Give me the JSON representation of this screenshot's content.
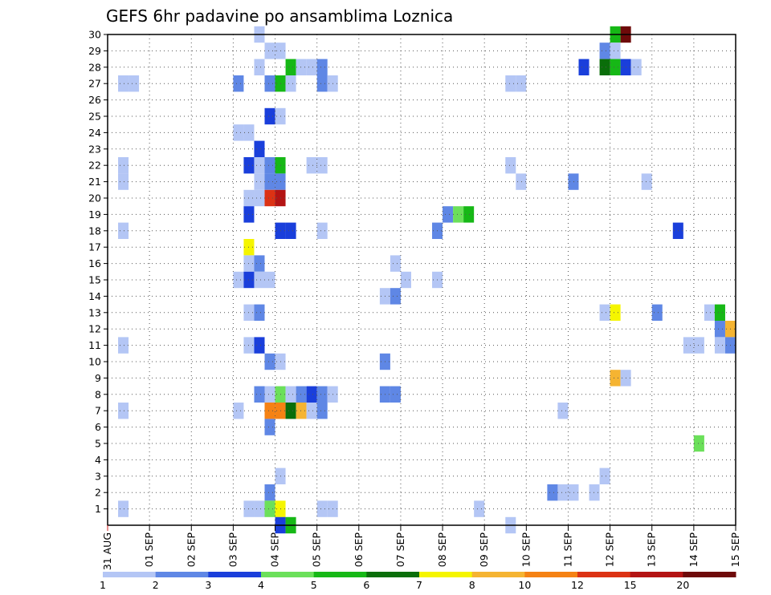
{
  "chart_data": {
    "type": "heatmap",
    "title": "GEFS 6hr padavine po ansamblima Loznica",
    "xlabel": "",
    "ylabel": "",
    "x_tick_labels": [
      "31 AUG",
      "01 SEP",
      "02 SEP",
      "03 SEP",
      "04 SEP",
      "05 SEP",
      "06 SEP",
      "07 SEP",
      "08 SEP",
      "09 SEP",
      "10 SEP",
      "11 SEP",
      "12 SEP",
      "13 SEP",
      "14 SEP",
      "15 SEP"
    ],
    "x_range_days": [
      0,
      15
    ],
    "y_tick_labels": [
      "1",
      "2",
      "3",
      "4",
      "5",
      "6",
      "7",
      "8",
      "9",
      "10",
      "11",
      "12",
      "13",
      "14",
      "15",
      "16",
      "17",
      "18",
      "19",
      "20",
      "21",
      "22",
      "23",
      "24",
      "25",
      "26",
      "27",
      "28",
      "29",
      "30"
    ],
    "y_range": [
      0,
      30
    ],
    "grid": true,
    "legend_position": "bottom",
    "legend": {
      "labels": [
        "1",
        "2",
        "3",
        "4",
        "5",
        "6",
        "7",
        "8",
        "10",
        "12",
        "15",
        "20"
      ],
      "colors": [
        "#b4c6f5",
        "#5f87e5",
        "#1a3fdb",
        "#6be05a",
        "#16b816",
        "#0a6e0a",
        "#f5f500",
        "#f5b432",
        "#f58214",
        "#dc3214",
        "#b41414",
        "#6e0a0a"
      ]
    },
    "cells": [
      {
        "d": 0.25,
        "m": 27,
        "c": 1
      },
      {
        "d": 0.25,
        "m": 22,
        "c": 1
      },
      {
        "d": 0.25,
        "m": 21,
        "c": 1
      },
      {
        "d": 0.25,
        "m": 18,
        "c": 1
      },
      {
        "d": 0.25,
        "m": 11,
        "c": 1
      },
      {
        "d": 0.25,
        "m": 7,
        "c": 1
      },
      {
        "d": 0.25,
        "m": 1,
        "c": 1
      },
      {
        "d": 0.5,
        "m": 27,
        "c": 1
      },
      {
        "d": 3.0,
        "m": 27,
        "c": 2
      },
      {
        "d": 3.0,
        "m": 24,
        "c": 1
      },
      {
        "d": 3.0,
        "m": 15,
        "c": 1
      },
      {
        "d": 3.0,
        "m": 7,
        "c": 1
      },
      {
        "d": 3.25,
        "m": 24,
        "c": 1
      },
      {
        "d": 3.25,
        "m": 22,
        "c": 3
      },
      {
        "d": 3.25,
        "m": 20,
        "c": 1
      },
      {
        "d": 3.25,
        "m": 19,
        "c": 3
      },
      {
        "d": 3.25,
        "m": 17,
        "c": 7
      },
      {
        "d": 3.25,
        "m": 16,
        "c": 1
      },
      {
        "d": 3.25,
        "m": 15,
        "c": 3
      },
      {
        "d": 3.25,
        "m": 13,
        "c": 1
      },
      {
        "d": 3.25,
        "m": 11,
        "c": 1
      },
      {
        "d": 3.25,
        "m": 1,
        "c": 1
      },
      {
        "d": 3.5,
        "m": 30,
        "c": 1
      },
      {
        "d": 3.5,
        "m": 28,
        "c": 1
      },
      {
        "d": 3.5,
        "m": 23,
        "c": 3
      },
      {
        "d": 3.5,
        "m": 22,
        "c": 1
      },
      {
        "d": 3.5,
        "m": 21,
        "c": 1
      },
      {
        "d": 3.5,
        "m": 20,
        "c": 1
      },
      {
        "d": 3.5,
        "m": 16,
        "c": 2
      },
      {
        "d": 3.5,
        "m": 15,
        "c": 1
      },
      {
        "d": 3.5,
        "m": 13,
        "c": 2
      },
      {
        "d": 3.5,
        "m": 11,
        "c": 3
      },
      {
        "d": 3.5,
        "m": 8,
        "c": 2
      },
      {
        "d": 3.5,
        "m": 1,
        "c": 1
      },
      {
        "d": 3.75,
        "m": 29,
        "c": 1
      },
      {
        "d": 3.75,
        "m": 27,
        "c": 2
      },
      {
        "d": 3.75,
        "m": 25,
        "c": 3
      },
      {
        "d": 3.75,
        "m": 22,
        "c": 2
      },
      {
        "d": 3.75,
        "m": 21,
        "c": 2
      },
      {
        "d": 3.75,
        "m": 20,
        "c": 10
      },
      {
        "d": 3.75,
        "m": 15,
        "c": 1
      },
      {
        "d": 3.75,
        "m": 10,
        "c": 2
      },
      {
        "d": 3.75,
        "m": 8,
        "c": 1
      },
      {
        "d": 3.75,
        "m": 7,
        "c": 9
      },
      {
        "d": 3.75,
        "m": 6,
        "c": 2
      },
      {
        "d": 3.75,
        "m": 2,
        "c": 2
      },
      {
        "d": 3.75,
        "m": 1,
        "c": 4
      },
      {
        "d": 4.0,
        "m": 29,
        "c": 1
      },
      {
        "d": 4.0,
        "m": 27,
        "c": 5
      },
      {
        "d": 4.0,
        "m": 25,
        "c": 1
      },
      {
        "d": 4.0,
        "m": 22,
        "c": 5
      },
      {
        "d": 4.0,
        "m": 21,
        "c": 2
      },
      {
        "d": 4.0,
        "m": 20,
        "c": 11
      },
      {
        "d": 4.0,
        "m": 18,
        "c": 3
      },
      {
        "d": 4.0,
        "m": 10,
        "c": 1
      },
      {
        "d": 4.0,
        "m": 8,
        "c": 4
      },
      {
        "d": 4.0,
        "m": 7,
        "c": 9
      },
      {
        "d": 4.0,
        "m": 3,
        "c": 1
      },
      {
        "d": 4.0,
        "m": 1,
        "c": 7
      },
      {
        "d": 4.0,
        "m": 0,
        "c": 3
      },
      {
        "d": 4.25,
        "m": 28,
        "c": 5
      },
      {
        "d": 4.25,
        "m": 27,
        "c": 1
      },
      {
        "d": 4.25,
        "m": 18,
        "c": 3
      },
      {
        "d": 4.25,
        "m": 8,
        "c": 1
      },
      {
        "d": 4.25,
        "m": 7,
        "c": 6
      },
      {
        "d": 4.25,
        "m": 0,
        "c": 5
      },
      {
        "d": 4.5,
        "m": 28,
        "c": 1
      },
      {
        "d": 4.5,
        "m": 8,
        "c": 2
      },
      {
        "d": 4.5,
        "m": 7,
        "c": 8
      },
      {
        "d": 4.75,
        "m": 28,
        "c": 1
      },
      {
        "d": 4.75,
        "m": 22,
        "c": 1
      },
      {
        "d": 4.75,
        "m": 8,
        "c": 3
      },
      {
        "d": 4.75,
        "m": 7,
        "c": 1
      },
      {
        "d": 5.0,
        "m": 28,
        "c": 2
      },
      {
        "d": 5.0,
        "m": 27,
        "c": 2
      },
      {
        "d": 5.0,
        "m": 22,
        "c": 1
      },
      {
        "d": 5.0,
        "m": 18,
        "c": 1
      },
      {
        "d": 5.0,
        "m": 8,
        "c": 2
      },
      {
        "d": 5.0,
        "m": 7,
        "c": 2
      },
      {
        "d": 5.0,
        "m": 1,
        "c": 1
      },
      {
        "d": 5.25,
        "m": 27,
        "c": 1
      },
      {
        "d": 5.25,
        "m": 8,
        "c": 1
      },
      {
        "d": 5.25,
        "m": 1,
        "c": 1
      },
      {
        "d": 6.5,
        "m": 14,
        "c": 1
      },
      {
        "d": 6.5,
        "m": 10,
        "c": 2
      },
      {
        "d": 6.5,
        "m": 8,
        "c": 2
      },
      {
        "d": 6.75,
        "m": 16,
        "c": 1
      },
      {
        "d": 6.75,
        "m": 14,
        "c": 2
      },
      {
        "d": 6.75,
        "m": 8,
        "c": 2
      },
      {
        "d": 7.0,
        "m": 15,
        "c": 1
      },
      {
        "d": 7.75,
        "m": 18,
        "c": 2
      },
      {
        "d": 7.75,
        "m": 15,
        "c": 1
      },
      {
        "d": 8.0,
        "m": 19,
        "c": 2
      },
      {
        "d": 8.25,
        "m": 19,
        "c": 4
      },
      {
        "d": 8.5,
        "m": 19,
        "c": 5
      },
      {
        "d": 8.75,
        "m": 1,
        "c": 1
      },
      {
        "d": 9.5,
        "m": 27,
        "c": 1
      },
      {
        "d": 9.5,
        "m": 22,
        "c": 1
      },
      {
        "d": 9.5,
        "m": 0,
        "c": 1
      },
      {
        "d": 9.75,
        "m": 27,
        "c": 1
      },
      {
        "d": 9.75,
        "m": 21,
        "c": 1
      },
      {
        "d": 10.5,
        "m": 2,
        "c": 2
      },
      {
        "d": 10.75,
        "m": 7,
        "c": 1
      },
      {
        "d": 10.75,
        "m": 2,
        "c": 1
      },
      {
        "d": 11.0,
        "m": 21,
        "c": 2
      },
      {
        "d": 11.0,
        "m": 2,
        "c": 1
      },
      {
        "d": 11.25,
        "m": 28,
        "c": 3
      },
      {
        "d": 11.5,
        "m": 2,
        "c": 1
      },
      {
        "d": 11.75,
        "m": 29,
        "c": 2
      },
      {
        "d": 11.75,
        "m": 28,
        "c": 6
      },
      {
        "d": 11.75,
        "m": 13,
        "c": 1
      },
      {
        "d": 11.75,
        "m": 3,
        "c": 1
      },
      {
        "d": 12.0,
        "m": 30,
        "c": 5
      },
      {
        "d": 12.0,
        "m": 29,
        "c": 1
      },
      {
        "d": 12.0,
        "m": 28,
        "c": 5
      },
      {
        "d": 12.0,
        "m": 13,
        "c": 7
      },
      {
        "d": 12.0,
        "m": 9,
        "c": 8
      },
      {
        "d": 12.25,
        "m": 30,
        "c": 12
      },
      {
        "d": 12.25,
        "m": 28,
        "c": 3
      },
      {
        "d": 12.25,
        "m": 9,
        "c": 1
      },
      {
        "d": 12.5,
        "m": 28,
        "c": 1
      },
      {
        "d": 12.75,
        "m": 21,
        "c": 1
      },
      {
        "d": 13.0,
        "m": 13,
        "c": 2
      },
      {
        "d": 13.5,
        "m": 18,
        "c": 3
      },
      {
        "d": 13.75,
        "m": 11,
        "c": 1
      },
      {
        "d": 14.0,
        "m": 11,
        "c": 1
      },
      {
        "d": 14.0,
        "m": 5,
        "c": 4
      },
      {
        "d": 14.25,
        "m": 13,
        "c": 1
      },
      {
        "d": 14.5,
        "m": 13,
        "c": 5
      },
      {
        "d": 14.5,
        "m": 12,
        "c": 2
      },
      {
        "d": 14.5,
        "m": 11,
        "c": 1
      },
      {
        "d": 14.75,
        "m": 12,
        "c": 8
      },
      {
        "d": 14.75,
        "m": 11,
        "c": 2
      }
    ]
  }
}
